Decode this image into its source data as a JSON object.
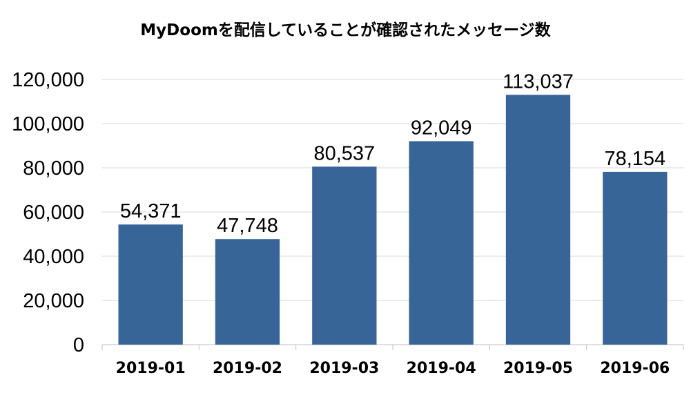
{
  "chart_data": {
    "type": "bar",
    "title": "MyDoomを配信していることが確認されたメッセージ数",
    "categories": [
      "2019-01",
      "2019-02",
      "2019-03",
      "2019-04",
      "2019-05",
      "2019-06"
    ],
    "values": [
      54371,
      47748,
      80537,
      92049,
      113037,
      78154
    ],
    "data_labels": [
      "54,371",
      "47,748",
      "80,537",
      "92,049",
      "113,037",
      "78,154"
    ],
    "yticks": [
      "0",
      "20,000",
      "40,000",
      "60,000",
      "80,000",
      "100,000",
      "120,000"
    ],
    "ytick_values": [
      0,
      20000,
      40000,
      60000,
      80000,
      100000,
      120000
    ],
    "ylim": [
      0,
      120000
    ],
    "xlabel": "",
    "ylabel": "",
    "grid": true,
    "bar_color": "#386598",
    "grid_color": "#d9d9d9"
  }
}
